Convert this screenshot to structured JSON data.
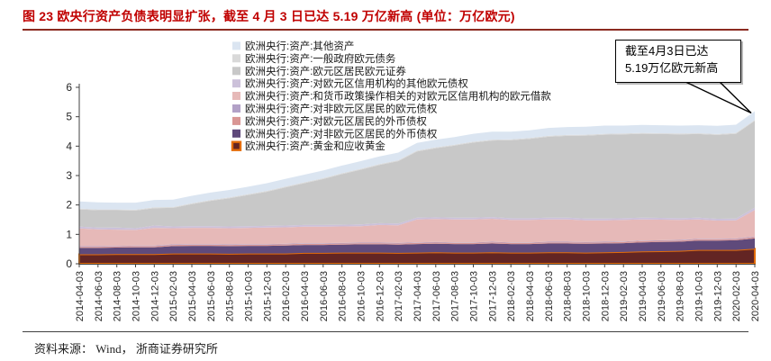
{
  "report": {
    "title": "图 23 欧央行资产负债表明显扩张，截至 4 月 3 日已达 5.19 万亿新高 (单位：万亿欧元)",
    "source": "资料来源： Wind， 浙商证券研究所"
  },
  "annotation": {
    "line1": "截至4月3日已达",
    "line2": "5.19万亿欧元新高"
  },
  "colors": {
    "title_red": "#c00000",
    "title_rule": "#8b2a20",
    "axis": "#404040",
    "gold_border": "#e36c09"
  },
  "chart_data": {
    "type": "area",
    "stacked": true,
    "title": "",
    "xlabel": "",
    "ylabel": "",
    "unit": "万亿欧元",
    "ylim": [
      0,
      6
    ],
    "yticks": [
      "0",
      "1",
      "2",
      "3",
      "4",
      "5",
      "6"
    ],
    "grid": false,
    "legend_position": "top-center-overlay",
    "x": [
      "2014-04-03",
      "2014-06-03",
      "2014-08-03",
      "2014-10-03",
      "2014-12-03",
      "2015-02-03",
      "2015-04-03",
      "2015-06-03",
      "2015-08-03",
      "2015-10-03",
      "2015-12-03",
      "2016-02-03",
      "2016-04-03",
      "2016-06-03",
      "2016-08-03",
      "2016-10-03",
      "2016-12-03",
      "2017-02-03",
      "2017-04-03",
      "2017-06-03",
      "2017-08-03",
      "2017-10-03",
      "2017-12-03",
      "2018-02-03",
      "2018-04-03",
      "2018-06-03",
      "2018-08-03",
      "2018-10-03",
      "2018-12-03",
      "2019-02-03",
      "2019-04-03",
      "2019-06-03",
      "2019-08-03",
      "2019-10-03",
      "2019-12-03",
      "2020-02-03",
      "2020-04-03"
    ],
    "series": [
      {
        "label": "欧洲央行:资产:其他资产",
        "color": "#dbe5f1",
        "values": [
          0.24,
          0.24,
          0.23,
          0.24,
          0.25,
          0.25,
          0.25,
          0.25,
          0.25,
          0.25,
          0.26,
          0.26,
          0.26,
          0.26,
          0.26,
          0.26,
          0.26,
          0.26,
          0.26,
          0.26,
          0.26,
          0.27,
          0.27,
          0.26,
          0.26,
          0.27,
          0.27,
          0.27,
          0.28,
          0.27,
          0.27,
          0.27,
          0.27,
          0.27,
          0.28,
          0.28,
          0.3
        ]
      },
      {
        "label": "欧洲央行:资产:一般政府欧元债务",
        "color": "#d9d9d9",
        "values": [
          0.03,
          0.03,
          0.03,
          0.03,
          0.03,
          0.03,
          0.03,
          0.03,
          0.03,
          0.03,
          0.03,
          0.03,
          0.03,
          0.03,
          0.03,
          0.03,
          0.03,
          0.03,
          0.03,
          0.03,
          0.03,
          0.03,
          0.03,
          0.03,
          0.03,
          0.03,
          0.03,
          0.03,
          0.03,
          0.03,
          0.03,
          0.03,
          0.03,
          0.03,
          0.03,
          0.03,
          0.03
        ]
      },
      {
        "label": "欧洲央行:资产:欧元区居民欧元证券",
        "color": "#c8c8c8",
        "values": [
          0.59,
          0.59,
          0.59,
          0.6,
          0.59,
          0.63,
          0.75,
          0.86,
          0.96,
          1.06,
          1.16,
          1.3,
          1.42,
          1.56,
          1.72,
          1.86,
          1.98,
          2.12,
          2.25,
          2.35,
          2.45,
          2.55,
          2.6,
          2.65,
          2.7,
          2.75,
          2.78,
          2.82,
          2.85,
          2.85,
          2.85,
          2.85,
          2.85,
          2.84,
          2.85,
          2.88,
          2.95
        ]
      },
      {
        "label": "欧洲央行:资产:对欧元区信用机构的其他欧元债权",
        "color": "#ccc1da",
        "values": [
          0.06,
          0.06,
          0.07,
          0.06,
          0.08,
          0.06,
          0.06,
          0.06,
          0.06,
          0.06,
          0.06,
          0.06,
          0.06,
          0.06,
          0.06,
          0.06,
          0.06,
          0.06,
          0.06,
          0.06,
          0.06,
          0.06,
          0.06,
          0.06,
          0.06,
          0.06,
          0.06,
          0.06,
          0.06,
          0.06,
          0.06,
          0.06,
          0.06,
          0.06,
          0.06,
          0.06,
          0.08
        ]
      },
      {
        "label": "欧洲央行:资产:和货币政策操作相关的对欧元区信用机构的欧元借款",
        "color": "#e6b9b8",
        "values": [
          0.6,
          0.57,
          0.55,
          0.53,
          0.6,
          0.55,
          0.55,
          0.55,
          0.55,
          0.55,
          0.56,
          0.56,
          0.56,
          0.56,
          0.56,
          0.56,
          0.6,
          0.6,
          0.78,
          0.78,
          0.78,
          0.78,
          0.78,
          0.76,
          0.76,
          0.76,
          0.76,
          0.74,
          0.73,
          0.73,
          0.72,
          0.7,
          0.68,
          0.66,
          0.62,
          0.62,
          0.9
        ]
      },
      {
        "label": "欧洲央行:资产:对非欧元区居民的欧元债权",
        "color": "#b2a1c7",
        "values": [
          0.02,
          0.02,
          0.02,
          0.02,
          0.02,
          0.02,
          0.02,
          0.02,
          0.02,
          0.02,
          0.02,
          0.02,
          0.02,
          0.02,
          0.02,
          0.02,
          0.02,
          0.02,
          0.02,
          0.02,
          0.02,
          0.02,
          0.02,
          0.02,
          0.02,
          0.02,
          0.02,
          0.02,
          0.02,
          0.02,
          0.02,
          0.02,
          0.02,
          0.02,
          0.02,
          0.02,
          0.02
        ]
      },
      {
        "label": "欧洲央行:资产:对欧元区居民的外币债权",
        "color": "#d99694",
        "values": [
          0.04,
          0.04,
          0.04,
          0.04,
          0.04,
          0.04,
          0.04,
          0.04,
          0.04,
          0.04,
          0.04,
          0.04,
          0.04,
          0.04,
          0.04,
          0.04,
          0.04,
          0.04,
          0.04,
          0.04,
          0.04,
          0.04,
          0.04,
          0.04,
          0.04,
          0.04,
          0.04,
          0.04,
          0.04,
          0.04,
          0.04,
          0.04,
          0.04,
          0.04,
          0.04,
          0.04,
          0.05
        ]
      },
      {
        "label": "欧洲央行:资产:对非欧元区居民的外币债权",
        "color": "#5f4a7b",
        "values": [
          0.22,
          0.22,
          0.22,
          0.23,
          0.23,
          0.25,
          0.26,
          0.26,
          0.26,
          0.26,
          0.26,
          0.27,
          0.27,
          0.27,
          0.27,
          0.28,
          0.28,
          0.28,
          0.29,
          0.29,
          0.29,
          0.29,
          0.3,
          0.29,
          0.29,
          0.3,
          0.3,
          0.3,
          0.3,
          0.3,
          0.31,
          0.31,
          0.31,
          0.32,
          0.32,
          0.33,
          0.35
        ]
      },
      {
        "label": "欧洲央行:资产:黄金和应收黄金",
        "color": "#632523",
        "border": "#e36c09",
        "values": [
          0.32,
          0.32,
          0.33,
          0.33,
          0.33,
          0.35,
          0.35,
          0.35,
          0.34,
          0.35,
          0.35,
          0.35,
          0.37,
          0.37,
          0.38,
          0.38,
          0.38,
          0.37,
          0.38,
          0.39,
          0.38,
          0.38,
          0.39,
          0.38,
          0.38,
          0.39,
          0.39,
          0.38,
          0.39,
          0.4,
          0.42,
          0.43,
          0.44,
          0.47,
          0.47,
          0.47,
          0.51
        ]
      }
    ],
    "annotations": [
      {
        "text": "截至4月3日已达 5.19万亿欧元新高",
        "points_to_x": "2020-04-03",
        "points_to_y": 5.19
      }
    ]
  }
}
